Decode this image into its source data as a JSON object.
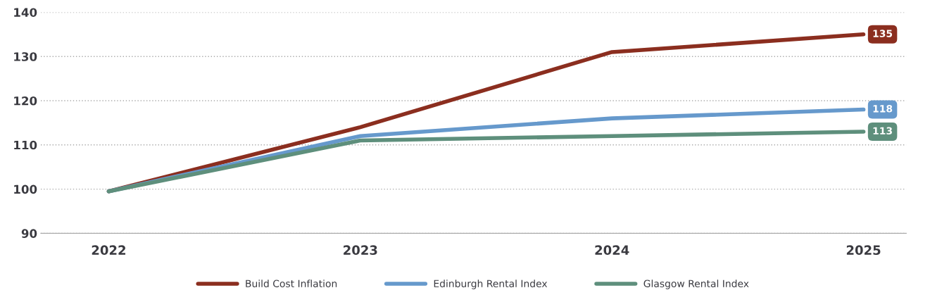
{
  "chart_data": {
    "type": "line",
    "categories": [
      "2022",
      "2023",
      "2024",
      "2025"
    ],
    "series": [
      {
        "name": "Build Cost Inflation",
        "color": "#8b2e1f",
        "values": [
          99.5,
          114,
          131,
          135
        ],
        "value_labels": [
          null,
          null,
          null,
          "135"
        ]
      },
      {
        "name": "Edinburgh Rental Index",
        "color": "#6699cc",
        "values": [
          99.5,
          112,
          116,
          118
        ],
        "value_labels": [
          null,
          null,
          null,
          "118"
        ]
      },
      {
        "name": "Glasgow Rental Index",
        "color": "#5e8f7c",
        "values": [
          99.5,
          111,
          112,
          113
        ],
        "value_labels": [
          null,
          null,
          null,
          "113"
        ]
      }
    ],
    "ylim": [
      90,
      140
    ],
    "yticks": [
      90,
      100,
      110,
      120,
      130,
      140
    ],
    "grid": "y",
    "legend": "bottom",
    "marker": "none",
    "line_style": "solid"
  }
}
